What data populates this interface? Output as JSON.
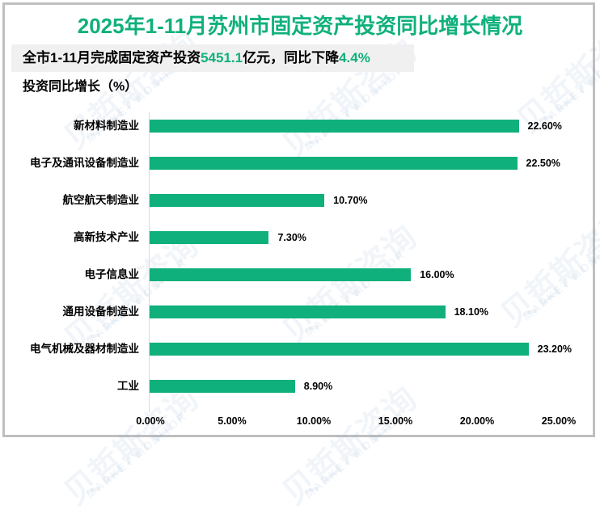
{
  "header": {
    "title": "2025年1-11月苏州市固定资产投资同比增长情况",
    "summary_parts": [
      "全市1-11月完成固定资产投资",
      "5451.1",
      "亿元，同比下降",
      "4.4%"
    ],
    "y_title": "投资同比增长（%）"
  },
  "watermark": {
    "cn": "贝哲斯咨询",
    "en": "MARKET MONITOR"
  },
  "colors": {
    "bar": "#10b07c",
    "title": "#10b07c",
    "summary_bg": "#f0f0f0",
    "border": "#bfbfbf"
  },
  "chart_data": {
    "type": "bar",
    "orientation": "horizontal",
    "title": "2025年1-11月苏州市固定资产投资同比增长情况",
    "subtitle": "全市1-11月完成固定资产投资5451.1亿元，同比下降4.4%",
    "xlabel": "",
    "ylabel": "投资同比增长（%）",
    "categories": [
      "新材料制造业",
      "电子及通讯设备制造业",
      "航空航天制造业",
      "高新技术产业",
      "电子信息业",
      "通用设备制造业",
      "电气机械及器材制造业",
      "工业"
    ],
    "values": [
      22.6,
      22.5,
      10.7,
      7.3,
      16.0,
      18.1,
      23.2,
      8.9
    ],
    "value_labels": [
      "22.60%",
      "22.50%",
      "10.70%",
      "7.30%",
      "16.00%",
      "18.10%",
      "23.20%",
      "8.90%"
    ],
    "xlim": [
      0,
      25
    ],
    "x_ticks": [
      "0.00%",
      "5.00%",
      "10.00%",
      "15.00%",
      "20.00%",
      "25.00%"
    ],
    "grid": false,
    "legend": null
  }
}
